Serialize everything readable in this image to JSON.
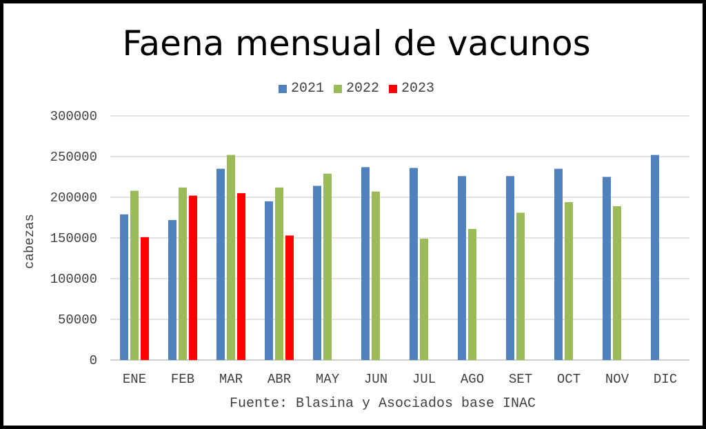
{
  "chart_data": {
    "type": "bar",
    "title": "Faena mensual de vacunos",
    "ylabel": "cabezas",
    "xlabel": "Fuente: Blasina y Asociados base INAC",
    "ylim": [
      0,
      300000
    ],
    "yticks": [
      "0",
      "50000",
      "100000",
      "150000",
      "200000",
      "250000",
      "300000"
    ],
    "grid": true,
    "legend_position": "top",
    "categories": [
      "ENE",
      "FEB",
      "MAR",
      "ABR",
      "MAY",
      "JUN",
      "JUL",
      "AGO",
      "SET",
      "OCT",
      "NOV",
      "DIC"
    ],
    "series": [
      {
        "name": "2021",
        "color": "#4F81BD",
        "values": [
          179000,
          172000,
          235000,
          195000,
          214000,
          237000,
          236000,
          226000,
          226000,
          235000,
          225000,
          252000
        ]
      },
      {
        "name": "2022",
        "color": "#9BBB59",
        "values": [
          208000,
          212000,
          252000,
          212000,
          229000,
          207000,
          149000,
          161000,
          181000,
          194000,
          189000,
          null
        ]
      },
      {
        "name": "2023",
        "color": "#FF0000",
        "values": [
          151000,
          202000,
          205000,
          153000,
          null,
          null,
          null,
          null,
          null,
          null,
          null,
          null
        ]
      }
    ]
  }
}
